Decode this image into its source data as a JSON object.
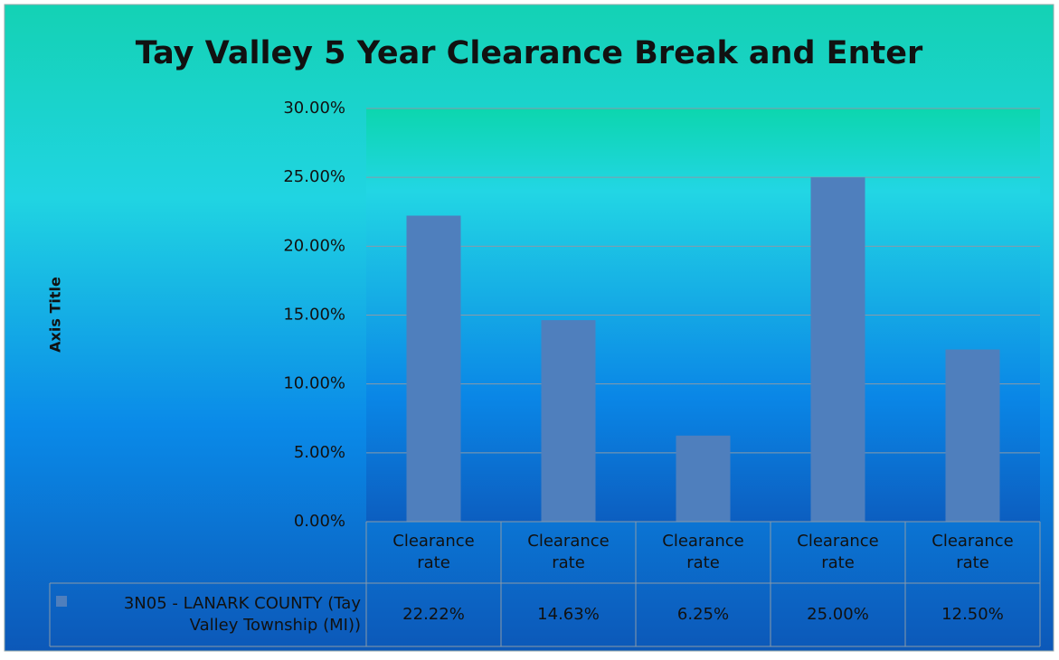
{
  "chart_data": {
    "type": "bar",
    "title": "Tay Valley 5 Year Clearance Break and Enter",
    "y_axis_title": "Axis Title",
    "categories": [
      "Clearance rate",
      "Clearance rate",
      "Clearance rate",
      "Clearance rate",
      "Clearance rate"
    ],
    "series": [
      {
        "name": "3N05 - LANARK COUNTY (Tay Valley Township (MI))",
        "color": "#4f7fbd",
        "values": [
          22.22,
          14.63,
          6.25,
          25.0,
          12.5
        ],
        "value_labels": [
          "22.22%",
          "14.63%",
          "6.25%",
          "25.00%",
          "12.50%"
        ]
      }
    ],
    "ylim": [
      0,
      30
    ],
    "yticks": [
      {
        "value": 0,
        "label": "0.00%"
      },
      {
        "value": 5,
        "label": "5.00%"
      },
      {
        "value": 10,
        "label": "10.00%"
      },
      {
        "value": 15,
        "label": "15.00%"
      },
      {
        "value": 20,
        "label": "20.00%"
      },
      {
        "value": 25,
        "label": "25.00%"
      },
      {
        "value": 30,
        "label": "30.00%"
      }
    ],
    "grid": true,
    "data_table": true
  }
}
